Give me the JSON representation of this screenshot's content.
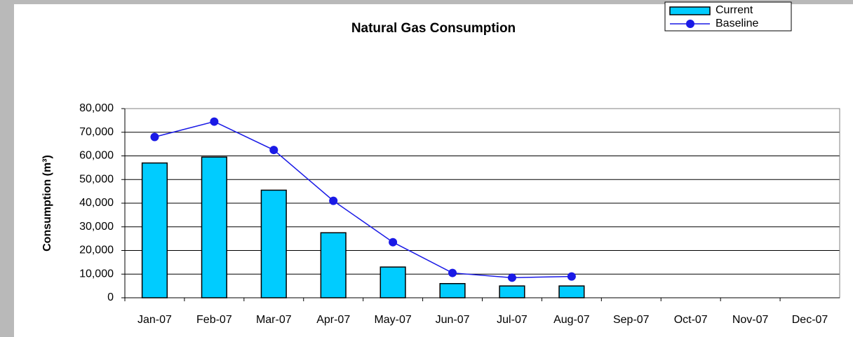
{
  "chart_data": {
    "type": "bar",
    "title": "Natural Gas Consumption",
    "y_label": "Consumption (m³)",
    "categories": [
      "Jan-07",
      "Feb-07",
      "Mar-07",
      "Apr-07",
      "May-07",
      "Jun-07",
      "Jul-07",
      "Aug-07",
      "Sep-07",
      "Oct-07",
      "Nov-07",
      "Dec-07"
    ],
    "series": [
      {
        "name": "Current",
        "type": "bar",
        "color": "#00ccff",
        "values": [
          57000,
          59500,
          45500,
          27500,
          13000,
          6000,
          5000,
          5000,
          null,
          null,
          null,
          null
        ]
      },
      {
        "name": "Baseline",
        "type": "line",
        "color": "#1a1ae6",
        "values": [
          68000,
          74500,
          62500,
          41000,
          23500,
          10500,
          8500,
          9000,
          null,
          null,
          null,
          null
        ]
      }
    ],
    "ylim": [
      0,
      80000
    ],
    "yticks": [
      0,
      {
        "value": 10000,
        "label": "10,000"
      },
      {
        "value": 20000,
        "label": "20,000"
      },
      {
        "value": 30000,
        "label": "30,000"
      },
      {
        "value": 40000,
        "label": "40,000"
      },
      {
        "value": 50000,
        "label": "50,000"
      },
      {
        "value": 60000,
        "label": "60,000"
      },
      {
        "value": 70000,
        "label": "70,000"
      },
      {
        "value": 80000,
        "label": "80,000"
      }
    ],
    "grid": true,
    "legend": "top-right"
  }
}
